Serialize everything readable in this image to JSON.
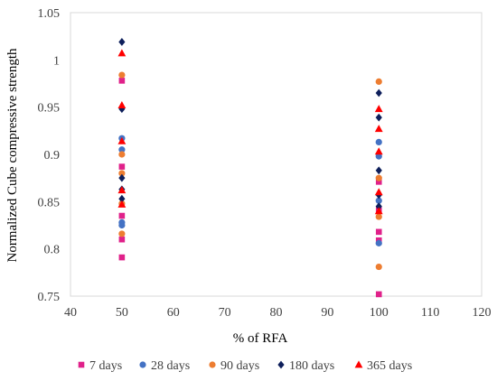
{
  "chart_data": {
    "type": "scatter",
    "title": "",
    "xlabel": "% of RFA",
    "ylabel": "Normalized Cube compressive strength",
    "xlim": [
      40,
      120
    ],
    "ylim": [
      0.75,
      1.05
    ],
    "x_ticks": [
      "40",
      "50",
      "60",
      "70",
      "80",
      "90",
      "100",
      "110",
      "120"
    ],
    "y_ticks": [
      "0.75",
      "0.8",
      "0.85",
      "0.9",
      "0.95",
      "1",
      "1.05"
    ],
    "grid": false,
    "legend_position": "bottom",
    "series": [
      {
        "name": "7 days",
        "marker": "square",
        "color": "#E0218A",
        "points": [
          [
            50,
            0.978
          ],
          [
            50,
            0.887
          ],
          [
            50,
            0.835
          ],
          [
            50,
            0.81
          ],
          [
            50,
            0.791
          ],
          [
            100,
            0.871
          ],
          [
            100,
            0.841
          ],
          [
            100,
            0.818
          ],
          [
            100,
            0.809
          ],
          [
            100,
            0.752
          ]
        ]
      },
      {
        "name": "28 days",
        "marker": "circle",
        "color": "#4472C4",
        "points": [
          [
            50,
            0.917
          ],
          [
            50,
            0.905
          ],
          [
            50,
            0.828
          ],
          [
            50,
            0.825
          ],
          [
            100,
            0.913
          ],
          [
            100,
            0.898
          ],
          [
            100,
            0.851
          ],
          [
            100,
            0.806
          ]
        ]
      },
      {
        "name": "90 days",
        "marker": "circle",
        "color": "#ED7D31",
        "points": [
          [
            50,
            0.984
          ],
          [
            50,
            0.9
          ],
          [
            50,
            0.88
          ],
          [
            50,
            0.848
          ],
          [
            50,
            0.816
          ],
          [
            100,
            0.977
          ],
          [
            100,
            0.875
          ],
          [
            100,
            0.834
          ],
          [
            100,
            0.781
          ]
        ]
      },
      {
        "name": "180 days",
        "marker": "diamond",
        "color": "#0E1F5B",
        "points": [
          [
            50,
            1.019
          ],
          [
            50,
            0.948
          ],
          [
            50,
            0.875
          ],
          [
            50,
            0.863
          ],
          [
            50,
            0.853
          ],
          [
            100,
            0.965
          ],
          [
            100,
            0.939
          ],
          [
            100,
            0.883
          ],
          [
            100,
            0.857
          ],
          [
            100,
            0.845
          ]
        ]
      },
      {
        "name": "365 days",
        "marker": "triangle",
        "color": "#FF0000",
        "points": [
          [
            50,
            1.007
          ],
          [
            50,
            0.952
          ],
          [
            50,
            0.914
          ],
          [
            50,
            0.862
          ],
          [
            50,
            0.847
          ],
          [
            100,
            0.948
          ],
          [
            100,
            0.927
          ],
          [
            100,
            0.903
          ],
          [
            100,
            0.86
          ],
          [
            100,
            0.84
          ]
        ]
      }
    ]
  }
}
